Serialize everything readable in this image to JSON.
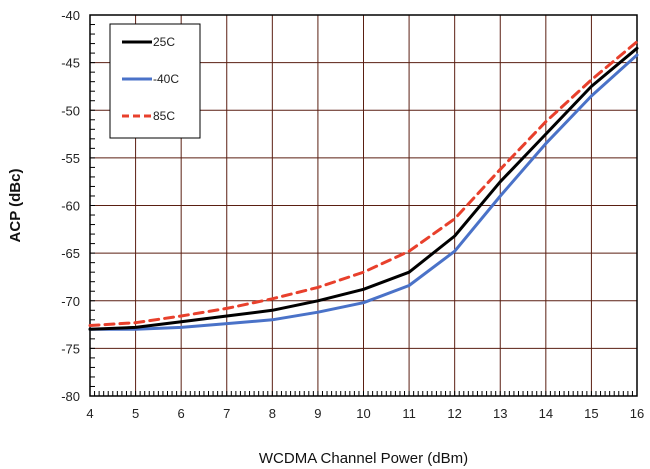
{
  "chart_data": {
    "type": "line",
    "title": "",
    "xlabel": "WCDMA Channel Power (dBm)",
    "ylabel": "ACP (dBc)",
    "xlim": [
      4,
      16
    ],
    "ylim": [
      -80,
      -40
    ],
    "xticks": [
      "4",
      "5",
      "6",
      "7",
      "8",
      "9",
      "10",
      "11",
      "12",
      "13",
      "14",
      "15",
      "16"
    ],
    "yticks": [
      "-40",
      "-45",
      "-50",
      "-55",
      "-60",
      "-65",
      "-70",
      "-75",
      "-80"
    ],
    "grid": true,
    "legend_position": "top-left",
    "series": [
      {
        "name": "25C",
        "color": "#000000",
        "dash": "solid",
        "x": [
          4,
          5,
          6,
          7,
          8,
          9,
          10,
          11,
          12,
          13,
          14,
          15,
          16
        ],
        "y": [
          -73.0,
          -72.8,
          -72.2,
          -71.6,
          -71.0,
          -70.0,
          -68.8,
          -67.0,
          -63.2,
          -57.5,
          -52.5,
          -47.5,
          -43.5
        ]
      },
      {
        "name": "-40C",
        "color": "#4a72c8",
        "dash": "solid",
        "x": [
          4,
          5,
          6,
          7,
          8,
          9,
          10,
          11,
          12,
          13,
          14,
          15,
          16
        ],
        "y": [
          -73.0,
          -73.0,
          -72.8,
          -72.4,
          -72.0,
          -71.2,
          -70.2,
          -68.4,
          -64.8,
          -59.0,
          -53.5,
          -48.5,
          -44.2
        ]
      },
      {
        "name": "85C",
        "color": "#e8402c",
        "dash": "dashed",
        "x": [
          4,
          5,
          6,
          7,
          8,
          9,
          10,
          11,
          12,
          13,
          14,
          15,
          16
        ],
        "y": [
          -72.6,
          -72.3,
          -71.6,
          -70.8,
          -69.8,
          -68.6,
          -67.0,
          -64.8,
          -61.4,
          -56.2,
          -51.2,
          -46.8,
          -42.8
        ]
      }
    ]
  }
}
